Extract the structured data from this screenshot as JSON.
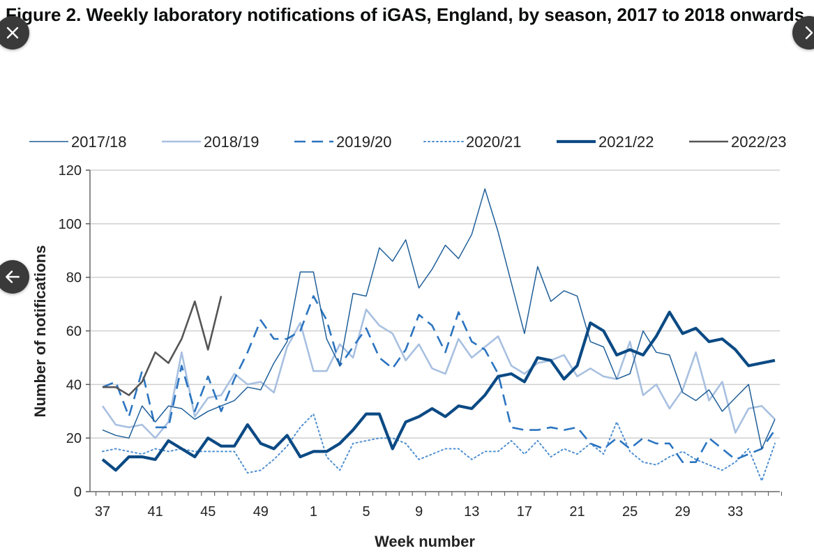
{
  "figure_title": "Figure 2. Weekly laboratory notifications of iGAS, England, by season, 2017 to 2018 onwards",
  "controls": {
    "close_icon": "close-icon",
    "next_icon": "chevron-right-icon",
    "prev_icon": "arrow-left-icon"
  },
  "chart_data": {
    "type": "line",
    "title": "Figure 2. Weekly laboratory notifications of iGAS, England, by season, 2017 to 2018 onwards",
    "xlabel": "Week number",
    "ylabel": "Number of  notifications",
    "ylim": [
      0,
      120
    ],
    "yticks": [
      0,
      20,
      40,
      60,
      80,
      100,
      120
    ],
    "grid": "horizontal",
    "legend_position": "top",
    "x_tick_labels": [
      "37",
      "41",
      "45",
      "49",
      "1",
      "5",
      "9",
      "13",
      "17",
      "21",
      "25",
      "29",
      "33"
    ],
    "weeks": [
      37,
      38,
      39,
      40,
      41,
      42,
      43,
      44,
      45,
      46,
      47,
      48,
      49,
      50,
      51,
      52,
      1,
      2,
      3,
      4,
      5,
      6,
      7,
      8,
      9,
      10,
      11,
      12,
      13,
      14,
      15,
      16,
      17,
      18,
      19,
      20,
      21,
      22,
      23,
      24,
      25,
      26,
      27,
      28,
      29,
      30,
      31,
      32,
      33,
      34,
      35,
      36
    ],
    "series": [
      {
        "name": "2017/18",
        "color": "#1f5f99",
        "style": "thin",
        "values": [
          23,
          21,
          20,
          32,
          26,
          32,
          31,
          27,
          30,
          32,
          34,
          39,
          38,
          48,
          56,
          82,
          82,
          57,
          47,
          74,
          73,
          91,
          86,
          94,
          76,
          83,
          92,
          87,
          96,
          113,
          97,
          78,
          59,
          84,
          71,
          75,
          73,
          56,
          54,
          42,
          44,
          60,
          52,
          51,
          37,
          34,
          38,
          30,
          35,
          40,
          16,
          27
        ]
      },
      {
        "name": "2018/19",
        "color": "#a8c0e0",
        "style": "medium",
        "values": [
          32,
          25,
          24,
          25,
          20,
          26,
          52,
          28,
          35,
          36,
          44,
          40,
          41,
          37,
          54,
          63,
          45,
          45,
          55,
          50,
          68,
          62,
          59,
          49,
          55,
          46,
          44,
          57,
          50,
          54,
          58,
          47,
          44,
          48,
          49,
          51,
          43,
          46,
          43,
          42,
          56,
          36,
          40,
          31,
          38,
          52,
          34,
          41,
          22,
          31,
          32,
          27
        ]
      },
      {
        "name": "2019/20",
        "color": "#2b74c0",
        "style": "dashed",
        "values": [
          39,
          41,
          28,
          45,
          24,
          24,
          47,
          30,
          43,
          30,
          42,
          52,
          64,
          57,
          57,
          60,
          73,
          64,
          47,
          54,
          61,
          50,
          46,
          53,
          66,
          62,
          52,
          67,
          56,
          53,
          44,
          24,
          23,
          23,
          24,
          23,
          24,
          18,
          16,
          20,
          16,
          20,
          18,
          18,
          11,
          11,
          20,
          16,
          12,
          14,
          16,
          23
        ]
      },
      {
        "name": "2020/21",
        "color": "#4f8fd1",
        "style": "dotted",
        "values": [
          15,
          16,
          15,
          14,
          16,
          15,
          16,
          15,
          15,
          15,
          15,
          7,
          8,
          12,
          17,
          24,
          29,
          13,
          8,
          18,
          19,
          20,
          20,
          18,
          12,
          14,
          16,
          16,
          12,
          15,
          15,
          19,
          14,
          19,
          13,
          16,
          14,
          18,
          14,
          26,
          15,
          11,
          10,
          13,
          15,
          12,
          10,
          8,
          11,
          16,
          4,
          18
        ]
      },
      {
        "name": "2021/22",
        "color": "#0b4a84",
        "style": "thick",
        "values": [
          12,
          8,
          13,
          13,
          12,
          19,
          16,
          13,
          20,
          17,
          17,
          25,
          18,
          16,
          21,
          13,
          15,
          15,
          18,
          23,
          29,
          29,
          16,
          26,
          28,
          31,
          28,
          32,
          31,
          36,
          43,
          44,
          41,
          50,
          49,
          42,
          47,
          63,
          60,
          51,
          53,
          51,
          58,
          67,
          59,
          61,
          56,
          57,
          53,
          47,
          48,
          49
        ]
      },
      {
        "name": "2022/23",
        "color": "#555555",
        "style": "medium",
        "values": [
          39,
          39,
          36,
          41,
          52,
          48,
          57,
          71,
          53,
          73
        ]
      }
    ]
  }
}
